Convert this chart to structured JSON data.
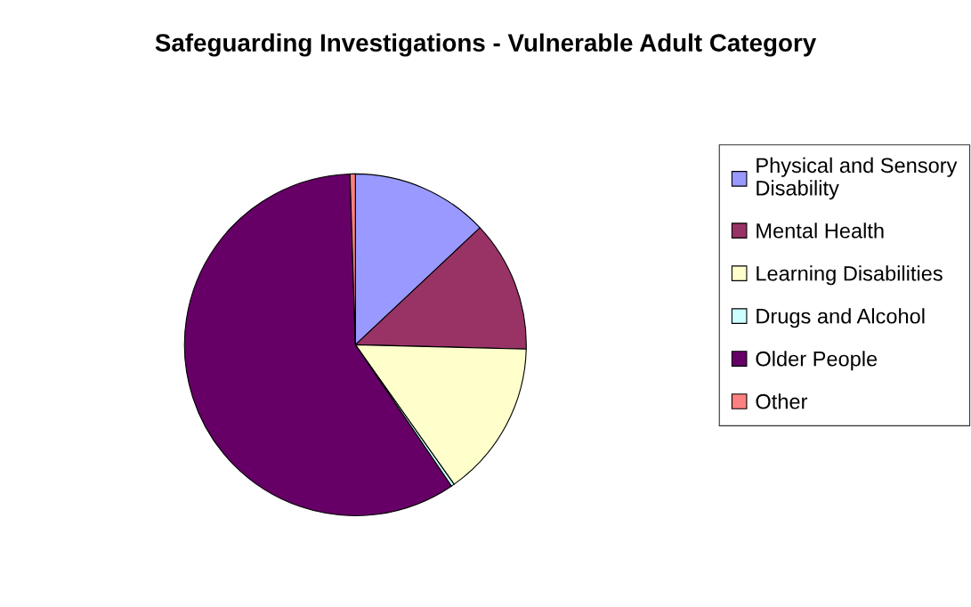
{
  "chart_data": {
    "type": "pie",
    "title": "Safeguarding Investigations - Vulnerable Adult Category",
    "categories": [
      "Physical and Sensory Disability",
      "Mental Health",
      "Learning Disabilities",
      "Drugs and Alcohol",
      "Older People",
      "Other"
    ],
    "values": [
      13.0,
      12.4,
      14.8,
      0.3,
      59.0,
      0.5
    ],
    "colors": [
      "#9999ff",
      "#993366",
      "#ffffcc",
      "#ccffff",
      "#660066",
      "#ff8080"
    ],
    "legend": "right"
  }
}
